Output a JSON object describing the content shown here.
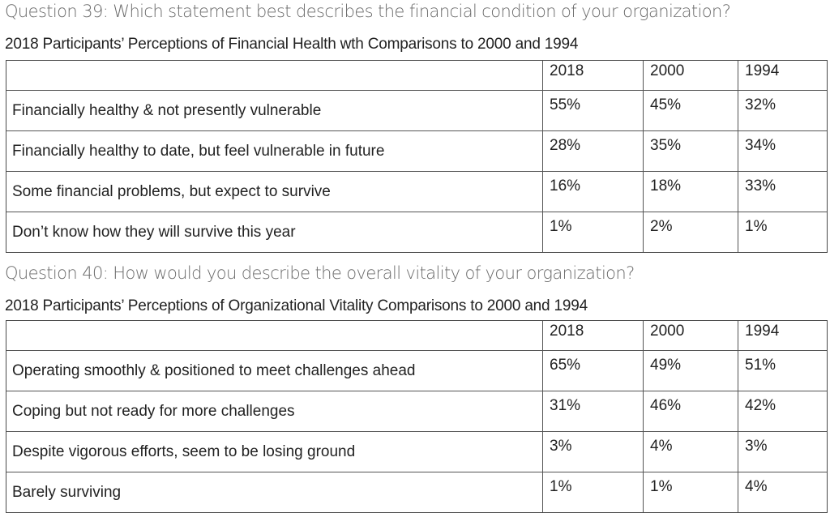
{
  "q39": {
    "question": "Question 39: Which statement best describes the financial condition of your organization?",
    "subtitle": "2018 Participants’ Perceptions of Financial Health wth Comparisons to 2000 and 1994",
    "columns": [
      "2018",
      "2000",
      "1994"
    ],
    "rows": [
      {
        "label": "Financially healthy & not presently vulnerable",
        "values": [
          "55%",
          "45%",
          "32%"
        ]
      },
      {
        "label": "Financially healthy to date, but feel vulnerable in future",
        "values": [
          "28%",
          "35%",
          "34%"
        ]
      },
      {
        "label": "Some financial problems, but expect to survive",
        "values": [
          "16%",
          "18%",
          "33%"
        ]
      },
      {
        "label": "Don’t know how they will survive this year",
        "values": [
          "1%",
          "2%",
          "1%"
        ]
      }
    ]
  },
  "q40": {
    "question": "Question 40: How would you describe the overall vitality of your organization?",
    "subtitle": "2018 Participants’ Perceptions of Organizational Vitality Comparisons to 2000 and 1994",
    "columns": [
      "2018",
      "2000",
      "1994"
    ],
    "rows": [
      {
        "label": "Operating smoothly & positioned to meet challenges ahead",
        "values": [
          "65%",
          "49%",
          "51%"
        ]
      },
      {
        "label": "Coping but not ready for more challenges",
        "values": [
          "31%",
          "46%",
          "42%"
        ]
      },
      {
        "label": "Despite vigorous efforts, seem to be losing ground",
        "values": [
          "3%",
          "4%",
          "3%"
        ]
      },
      {
        "label": "Barely surviving",
        "values": [
          "1%",
          "1%",
          "4%"
        ]
      }
    ]
  }
}
